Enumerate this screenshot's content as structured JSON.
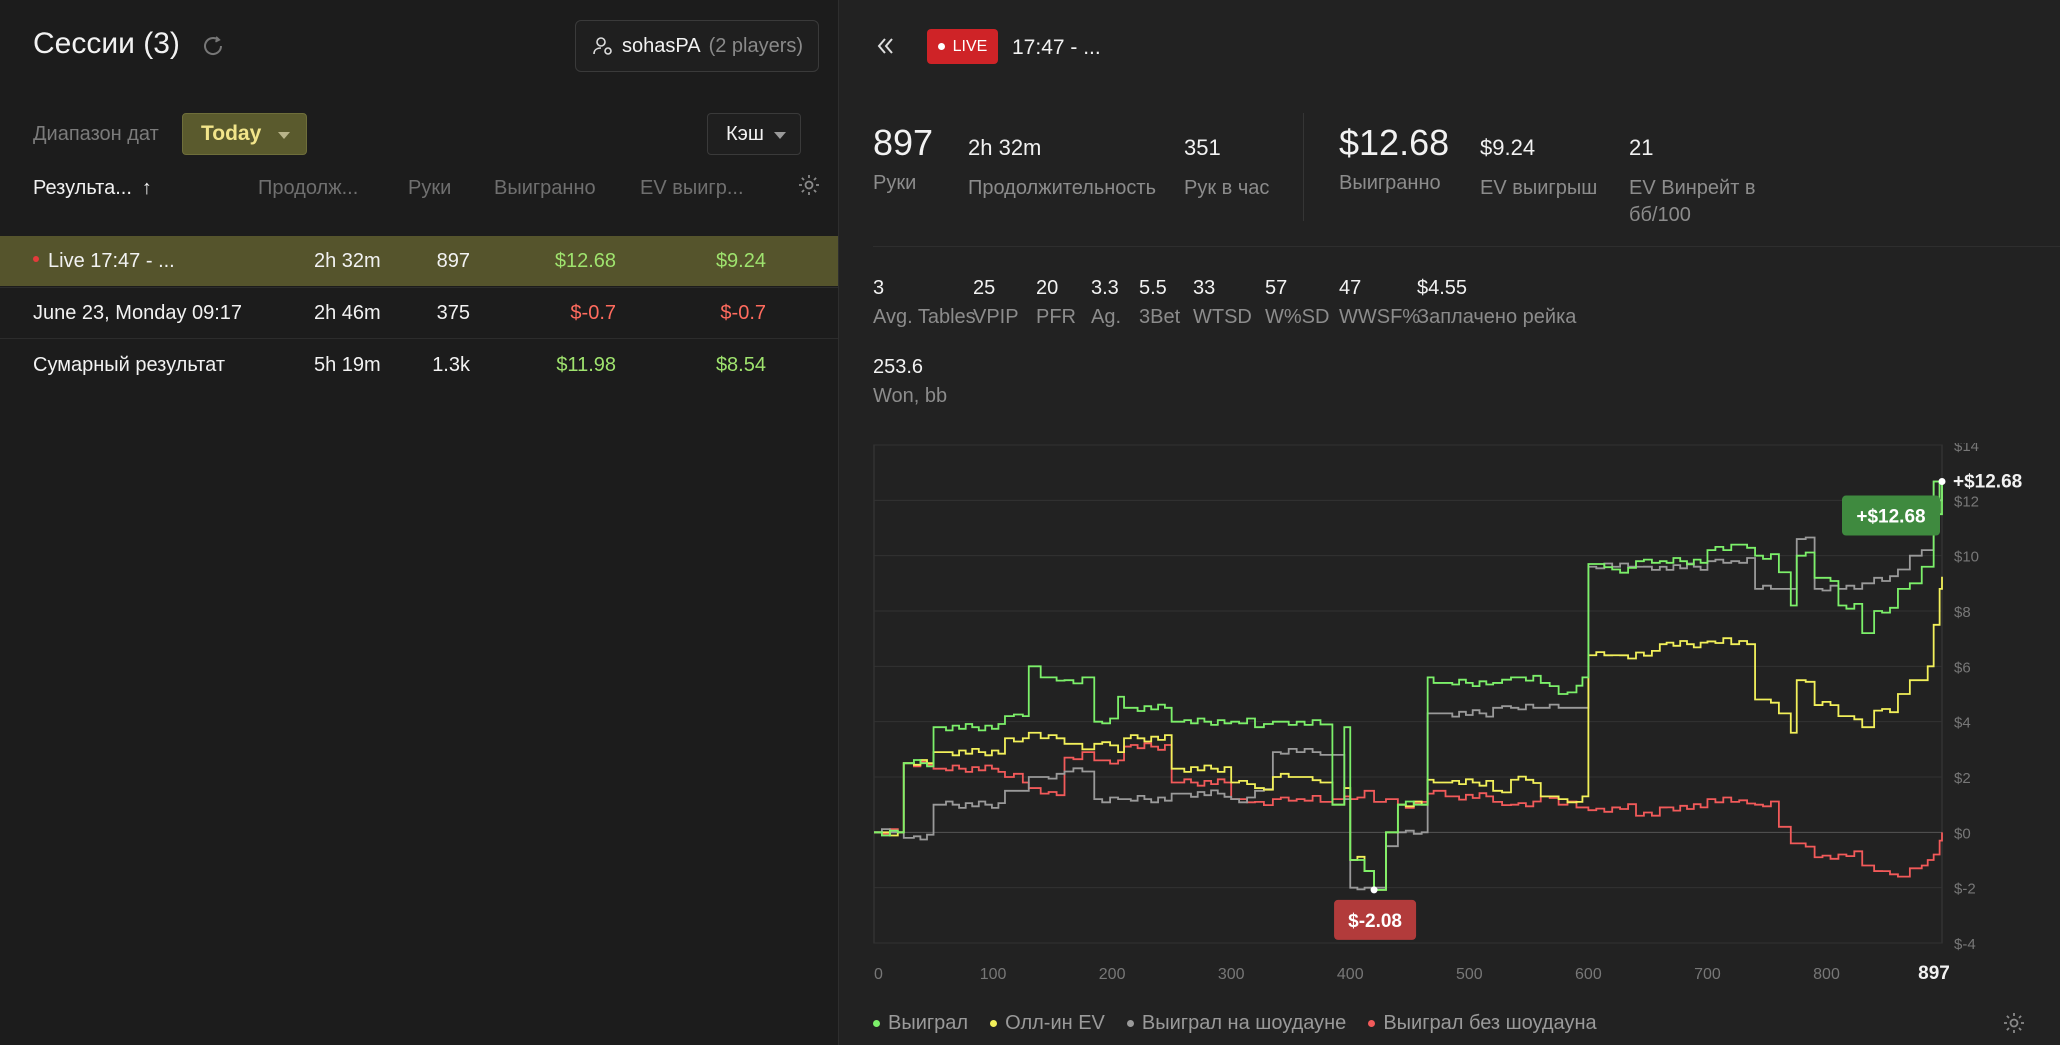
{
  "left": {
    "title": "Сессии (3)",
    "player": {
      "name": "sohasPA",
      "count": "(2 players)"
    },
    "date_label": "Диапазон дат",
    "date_range": "Today",
    "game_type": "Кэш",
    "columns": {
      "name": "Результа...",
      "sort_arrow": "↑",
      "duration": "Продолж...",
      "hands": "Руки",
      "won": "Выигранно",
      "ev": "EV выигр..."
    },
    "rows": [
      {
        "name": "Live 17:47 - ...",
        "duration": "2h 32m",
        "hands": "897",
        "won": "$12.68",
        "ev": "$9.24"
      },
      {
        "name": "June 23, Monday 09:17",
        "duration": "2h 46m",
        "hands": "375",
        "won": "$-0.7",
        "ev": "$-0.7"
      },
      {
        "name": "Сумарный результат",
        "duration": "5h 19m",
        "hands": "1.3k",
        "won": "$11.98",
        "ev": "$8.54"
      }
    ]
  },
  "right": {
    "live_badge": "LIVE",
    "session_title": "17:47 - ...",
    "hands": {
      "value": "897",
      "label": "Руки"
    },
    "duration": {
      "value": "2h 32m",
      "label": "Продолжительность"
    },
    "hands_per_hour": {
      "value": "351",
      "label": "Рук в час"
    },
    "won": {
      "value": "$12.68",
      "label": "Выигранно"
    },
    "ev_won": {
      "value": "$9.24",
      "label": "EV выигрыш"
    },
    "ev_winrate": {
      "value": "21",
      "label": "EV Винрейт в бб/100"
    },
    "stats": [
      {
        "value": "3",
        "label": "Avg. Tables"
      },
      {
        "value": "25",
        "label": "VPIP"
      },
      {
        "value": "20",
        "label": "PFR"
      },
      {
        "value": "3.3",
        "label": "Ag."
      },
      {
        "value": "5.5",
        "label": "3Bet"
      },
      {
        "value": "33",
        "label": "WTSD"
      },
      {
        "value": "57",
        "label": "W%SD"
      },
      {
        "value": "47",
        "label": "WWSF%"
      },
      {
        "value": "$4.55",
        "label": "Заплачено рейка"
      }
    ],
    "won_bb": {
      "value": "253.6",
      "label": "Won, bb"
    },
    "legend": [
      "Выиграл",
      "Олл-ин EV",
      "Выиграл на шоудауне",
      "Выиграл без шоудауна"
    ]
  },
  "colors": {
    "won": "#7cf06a",
    "allin_ev": "#f2f05a",
    "showdown": "#9a9a9a",
    "non_showdown": "#f25a5a",
    "accent_selected": "#55542c",
    "live": "#cf2327"
  },
  "chart_data": {
    "type": "line",
    "xlim": [
      0,
      897
    ],
    "ylim": [
      -4,
      14
    ],
    "x_ticks": [
      "0",
      "100",
      "200",
      "300",
      "400",
      "500",
      "600",
      "700",
      "800",
      "897"
    ],
    "y_ticks": [
      "$14",
      "$12",
      "$10",
      "$8",
      "$6",
      "$4",
      "$2",
      "$0",
      "$-2",
      "$-4"
    ],
    "end_label": "+$12.68",
    "max_label": "+$12.68",
    "min_label": "$-2.08",
    "min_point": [
      420,
      -2.08
    ],
    "series": [
      {
        "name": "Выиграл",
        "x": [
          0,
          20,
          25,
          28,
          50,
          55,
          110,
          125,
          130,
          140,
          160,
          175,
          185,
          205,
          210,
          250,
          255,
          300,
          320,
          335,
          355,
          375,
          385,
          395,
          400,
          412,
          420,
          430,
          440,
          460,
          465,
          470,
          480,
          520,
          535,
          560,
          575,
          590,
          595,
          600,
          620,
          640,
          660,
          700,
          720,
          740,
          760,
          770,
          775,
          790,
          810,
          830,
          840,
          860,
          870,
          880,
          885,
          890,
          895,
          897
        ],
        "y": [
          0,
          0,
          2.5,
          2.5,
          3.8,
          3.8,
          4.2,
          4.2,
          6,
          5.6,
          5.5,
          5.6,
          4,
          4.9,
          4.5,
          4,
          4,
          4,
          3.8,
          4,
          4,
          3.9,
          1,
          3.8,
          -1,
          -1.4,
          -2.08,
          0,
          1,
          1,
          5.6,
          5.4,
          5.4,
          5.4,
          5.6,
          5.4,
          5,
          5.3,
          5.6,
          9.7,
          9.5,
          9.8,
          9.8,
          10.2,
          10.4,
          10,
          9.4,
          8.2,
          10,
          9.2,
          8.2,
          7.2,
          8,
          8.8,
          9,
          9.6,
          9.6,
          12.68,
          11.5,
          12.68
        ]
      },
      {
        "name": "Олл-ин EV",
        "x": [
          0,
          20,
          25,
          28,
          50,
          55,
          110,
          125,
          130,
          140,
          160,
          175,
          185,
          205,
          210,
          250,
          255,
          300,
          320,
          335,
          355,
          375,
          385,
          395,
          400,
          412,
          420,
          430,
          440,
          460,
          465,
          470,
          480,
          520,
          535,
          560,
          575,
          590,
          595,
          600,
          620,
          640,
          660,
          700,
          720,
          740,
          760,
          770,
          775,
          790,
          810,
          830,
          840,
          860,
          870,
          880,
          885,
          890,
          895,
          897
        ],
        "y": [
          0,
          0,
          2.5,
          2.5,
          2.9,
          2.9,
          3.4,
          3.4,
          3.6,
          3.4,
          3.2,
          3,
          3.2,
          2.9,
          3.4,
          2.3,
          2.3,
          1.8,
          1.6,
          2,
          2,
          1.8,
          1,
          1.6,
          -1,
          -1.4,
          -2.08,
          0,
          1,
          1,
          1.9,
          1.8,
          1.8,
          1.5,
          1.9,
          1.3,
          1.2,
          1.1,
          1.3,
          6.4,
          6.4,
          6.5,
          6.8,
          6.9,
          6.8,
          4.8,
          4.3,
          3.6,
          5.5,
          4.6,
          4.2,
          3.8,
          4.4,
          5,
          5.5,
          5.5,
          6,
          7.5,
          8.8,
          9.24
        ]
      },
      {
        "name": "Выиграл на шоудауне",
        "x": [
          0,
          20,
          25,
          28,
          50,
          55,
          110,
          125,
          130,
          140,
          160,
          175,
          185,
          205,
          210,
          250,
          255,
          300,
          320,
          335,
          355,
          375,
          385,
          395,
          400,
          412,
          420,
          430,
          440,
          460,
          465,
          470,
          480,
          520,
          535,
          560,
          575,
          590,
          595,
          600,
          620,
          640,
          660,
          700,
          720,
          740,
          760,
          770,
          775,
          790,
          810,
          830,
          840,
          860,
          870,
          880,
          885,
          890,
          895,
          897
        ],
        "y": [
          0,
          0,
          -0.2,
          -0.2,
          1,
          1,
          1.5,
          1.5,
          2,
          2,
          2.2,
          2.2,
          1.2,
          1.2,
          1.2,
          1.4,
          1.4,
          1.2,
          1.5,
          2.9,
          2.9,
          2.8,
          2.8,
          1.2,
          -2,
          -2,
          -2,
          -0.5,
          0,
          0,
          4.3,
          4.3,
          4.3,
          4.5,
          4.5,
          4.5,
          4.5,
          4.5,
          4.5,
          9.6,
          9.6,
          9.6,
          9.6,
          9.8,
          9.8,
          8.8,
          8.8,
          8.8,
          10.6,
          8.8,
          8.8,
          9,
          9.2,
          9.5,
          10,
          10.2,
          10.2,
          12.68,
          12,
          12.68
        ]
      },
      {
        "name": "Выиграл без шоудауна",
        "x": [
          0,
          20,
          25,
          28,
          50,
          55,
          110,
          125,
          130,
          140,
          160,
          175,
          185,
          205,
          210,
          250,
          255,
          300,
          320,
          335,
          355,
          375,
          385,
          395,
          400,
          412,
          420,
          430,
          440,
          460,
          465,
          470,
          480,
          520,
          535,
          560,
          575,
          590,
          595,
          600,
          620,
          640,
          660,
          700,
          720,
          740,
          760,
          770,
          775,
          790,
          810,
          830,
          840,
          860,
          870,
          880,
          885,
          890,
          895,
          897
        ],
        "y": [
          0,
          0,
          2.5,
          2.5,
          2.3,
          2.3,
          2,
          1.8,
          1.6,
          1.4,
          2.7,
          2.9,
          2.6,
          2.6,
          3.1,
          1.8,
          1.8,
          1.2,
          1.1,
          1.2,
          1.2,
          1.1,
          1.2,
          1.3,
          1.2,
          1.5,
          1.1,
          1.2,
          1.0,
          1.1,
          1.4,
          1.5,
          1.3,
          1.1,
          1.0,
          1.3,
          1.0,
          0.9,
          0.9,
          0.8,
          0.9,
          0.6,
          0.9,
          1.2,
          1.1,
          1.0,
          0.2,
          -0.4,
          -0.4,
          -0.9,
          -0.8,
          -1.2,
          -1.4,
          -1.6,
          -1.3,
          -1.2,
          -1,
          -0.8,
          -0.3,
          0
        ]
      }
    ]
  }
}
